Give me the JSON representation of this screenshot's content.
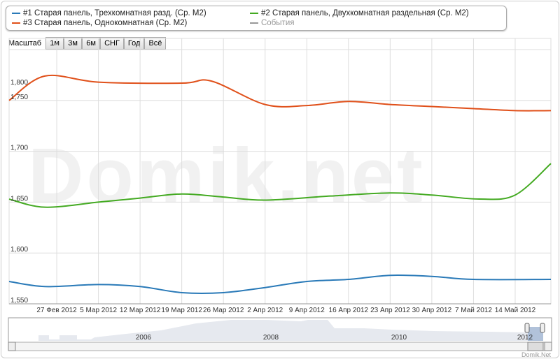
{
  "legend": [
    {
      "label": "#1 Старая панель, Трехкомнатная разд. (Ср. M2)",
      "color": "#2a7ab8"
    },
    {
      "label": "#2 Старая панель, Двухкомнатная раздельная (Ср. M2)",
      "color": "#44aa22"
    },
    {
      "label": "#3 Старая панель, Однокомнатная (Ср. M2)",
      "color": "#e0501a"
    },
    {
      "label": "События",
      "color": "#999999"
    }
  ],
  "zoom": {
    "label": "Масштаб",
    "buttons": [
      "1м",
      "3м",
      "6м",
      "СНГ",
      "Год",
      "Всё"
    ]
  },
  "watermark": "Domik.net",
  "credit": "Domik.Net",
  "chart_data": {
    "type": "line",
    "x_unit": "days since 19 Feb 2012",
    "xlim": [
      0,
      91
    ],
    "ylim": [
      1550,
      1811
    ],
    "ytick_labels": [
      {
        "v": 1800,
        "t": "1,800"
      },
      {
        "v": 1750,
        "t": "1,750"
      },
      {
        "v": 1700,
        "t": "1,700"
      },
      {
        "v": 1650,
        "t": "1,650"
      },
      {
        "v": 1600,
        "t": "1,600"
      },
      {
        "v": 1550,
        "t": "1,550"
      }
    ],
    "xticks": [
      {
        "d": 8,
        "t": "27 Фев 2012"
      },
      {
        "d": 15,
        "t": "5 Мар 2012"
      },
      {
        "d": 22,
        "t": "12 Мар 2012"
      },
      {
        "d": 29,
        "t": "19 Мар 2012"
      },
      {
        "d": 36,
        "t": "26 Мар 2012"
      },
      {
        "d": 43,
        "t": "2 Апр 2012"
      },
      {
        "d": 50,
        "t": "9 Апр 2012"
      },
      {
        "d": 57,
        "t": "16 Апр 2012"
      },
      {
        "d": 64,
        "t": "23 Апр 2012"
      },
      {
        "d": 71,
        "t": "30 Апр 2012"
      },
      {
        "d": 78,
        "t": "7 Май 2012"
      },
      {
        "d": 85,
        "t": "14 Май 2012"
      }
    ],
    "series": [
      {
        "name": "#3 Старая панель, Однокомнатная (Ср. M2)",
        "color": "#e0501a",
        "x": [
          0,
          6,
          15,
          29,
          34,
          43,
          50,
          57,
          64,
          71,
          78,
          85,
          91
        ],
        "y": [
          1750,
          1774,
          1768,
          1767,
          1769,
          1746,
          1745,
          1749,
          1746,
          1744,
          1742,
          1740,
          1740
        ]
      },
      {
        "name": "#2 Старая панель, Двухкомнатная раздельная (Ср. M2)",
        "color": "#44aa22",
        "x": [
          0,
          6,
          15,
          22,
          29,
          36,
          43,
          54,
          64,
          71,
          79,
          85,
          91
        ],
        "y": [
          1653,
          1645,
          1650,
          1654,
          1658,
          1655,
          1652,
          1656,
          1659,
          1657,
          1653,
          1657,
          1688
        ]
      },
      {
        "name": "#1 Старая панель, Трехкомнатная разд. (Ср. M2)",
        "color": "#2a7ab8",
        "x": [
          0,
          6,
          15,
          22,
          29,
          36,
          43,
          50,
          57,
          64,
          71,
          78,
          91
        ],
        "y": [
          1572,
          1567,
          1569,
          1567,
          1561,
          1561,
          1566,
          1572,
          1574,
          1578,
          1577,
          1574,
          1574
        ]
      }
    ],
    "navigator": {
      "labels": [
        "2006",
        "2008",
        "2010",
        "2012"
      ]
    }
  }
}
